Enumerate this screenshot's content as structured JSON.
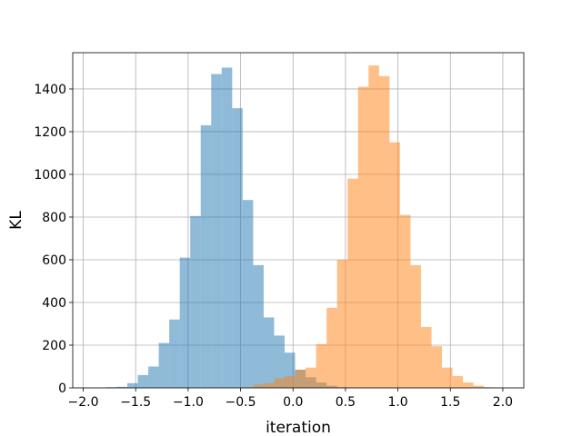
{
  "chart_data": {
    "type": "histogram",
    "xlabel": "iteration",
    "ylabel": "KL",
    "xlim": [
      -2.1,
      2.2
    ],
    "ylim": [
      0,
      1570
    ],
    "xticks": [
      -2.0,
      -1.5,
      -1.0,
      -0.5,
      0.0,
      0.5,
      1.0,
      1.5,
      2.0
    ],
    "xtick_labels": [
      "−2.0",
      "−1.5",
      "−1.0",
      "−0.5",
      "0.0",
      "0.5",
      "1.0",
      "1.5",
      "2.0"
    ],
    "yticks": [
      0,
      200,
      400,
      600,
      800,
      1000,
      1200,
      1400
    ],
    "ytick_labels": [
      "0",
      "200",
      "400",
      "600",
      "800",
      "1000",
      "1200",
      "1400"
    ],
    "grid": true,
    "series": [
      {
        "color": "#1f77b4",
        "opacity": 0.5,
        "bin_width": 0.1,
        "bins": [
          [
            -1.78,
            3
          ],
          [
            -1.68,
            5
          ],
          [
            -1.58,
            22
          ],
          [
            -1.48,
            60
          ],
          [
            -1.38,
            100
          ],
          [
            -1.28,
            210
          ],
          [
            -1.18,
            320
          ],
          [
            -1.08,
            610
          ],
          [
            -0.98,
            805
          ],
          [
            -0.88,
            1230
          ],
          [
            -0.78,
            1470
          ],
          [
            -0.68,
            1500
          ],
          [
            -0.58,
            1310
          ],
          [
            -0.48,
            880
          ],
          [
            -0.38,
            575
          ],
          [
            -0.28,
            330
          ],
          [
            -0.18,
            245
          ],
          [
            -0.08,
            165
          ],
          [
            0.02,
            85
          ],
          [
            0.12,
            50
          ],
          [
            0.22,
            25
          ],
          [
            0.32,
            10
          ],
          [
            0.42,
            3
          ]
        ]
      },
      {
        "color": "#ff7f0e",
        "opacity": 0.5,
        "bin_width": 0.1,
        "bins": [
          [
            -0.48,
            3
          ],
          [
            -0.38,
            15
          ],
          [
            -0.28,
            22
          ],
          [
            -0.18,
            45
          ],
          [
            -0.08,
            55
          ],
          [
            0.02,
            85
          ],
          [
            0.12,
            95
          ],
          [
            0.22,
            205
          ],
          [
            0.32,
            375
          ],
          [
            0.42,
            600
          ],
          [
            0.52,
            980
          ],
          [
            0.62,
            1410
          ],
          [
            0.72,
            1510
          ],
          [
            0.82,
            1460
          ],
          [
            0.92,
            1150
          ],
          [
            1.02,
            810
          ],
          [
            1.12,
            575
          ],
          [
            1.22,
            285
          ],
          [
            1.32,
            195
          ],
          [
            1.42,
            95
          ],
          [
            1.52,
            55
          ],
          [
            1.62,
            25
          ],
          [
            1.72,
            10
          ],
          [
            1.82,
            3
          ]
        ]
      }
    ]
  }
}
